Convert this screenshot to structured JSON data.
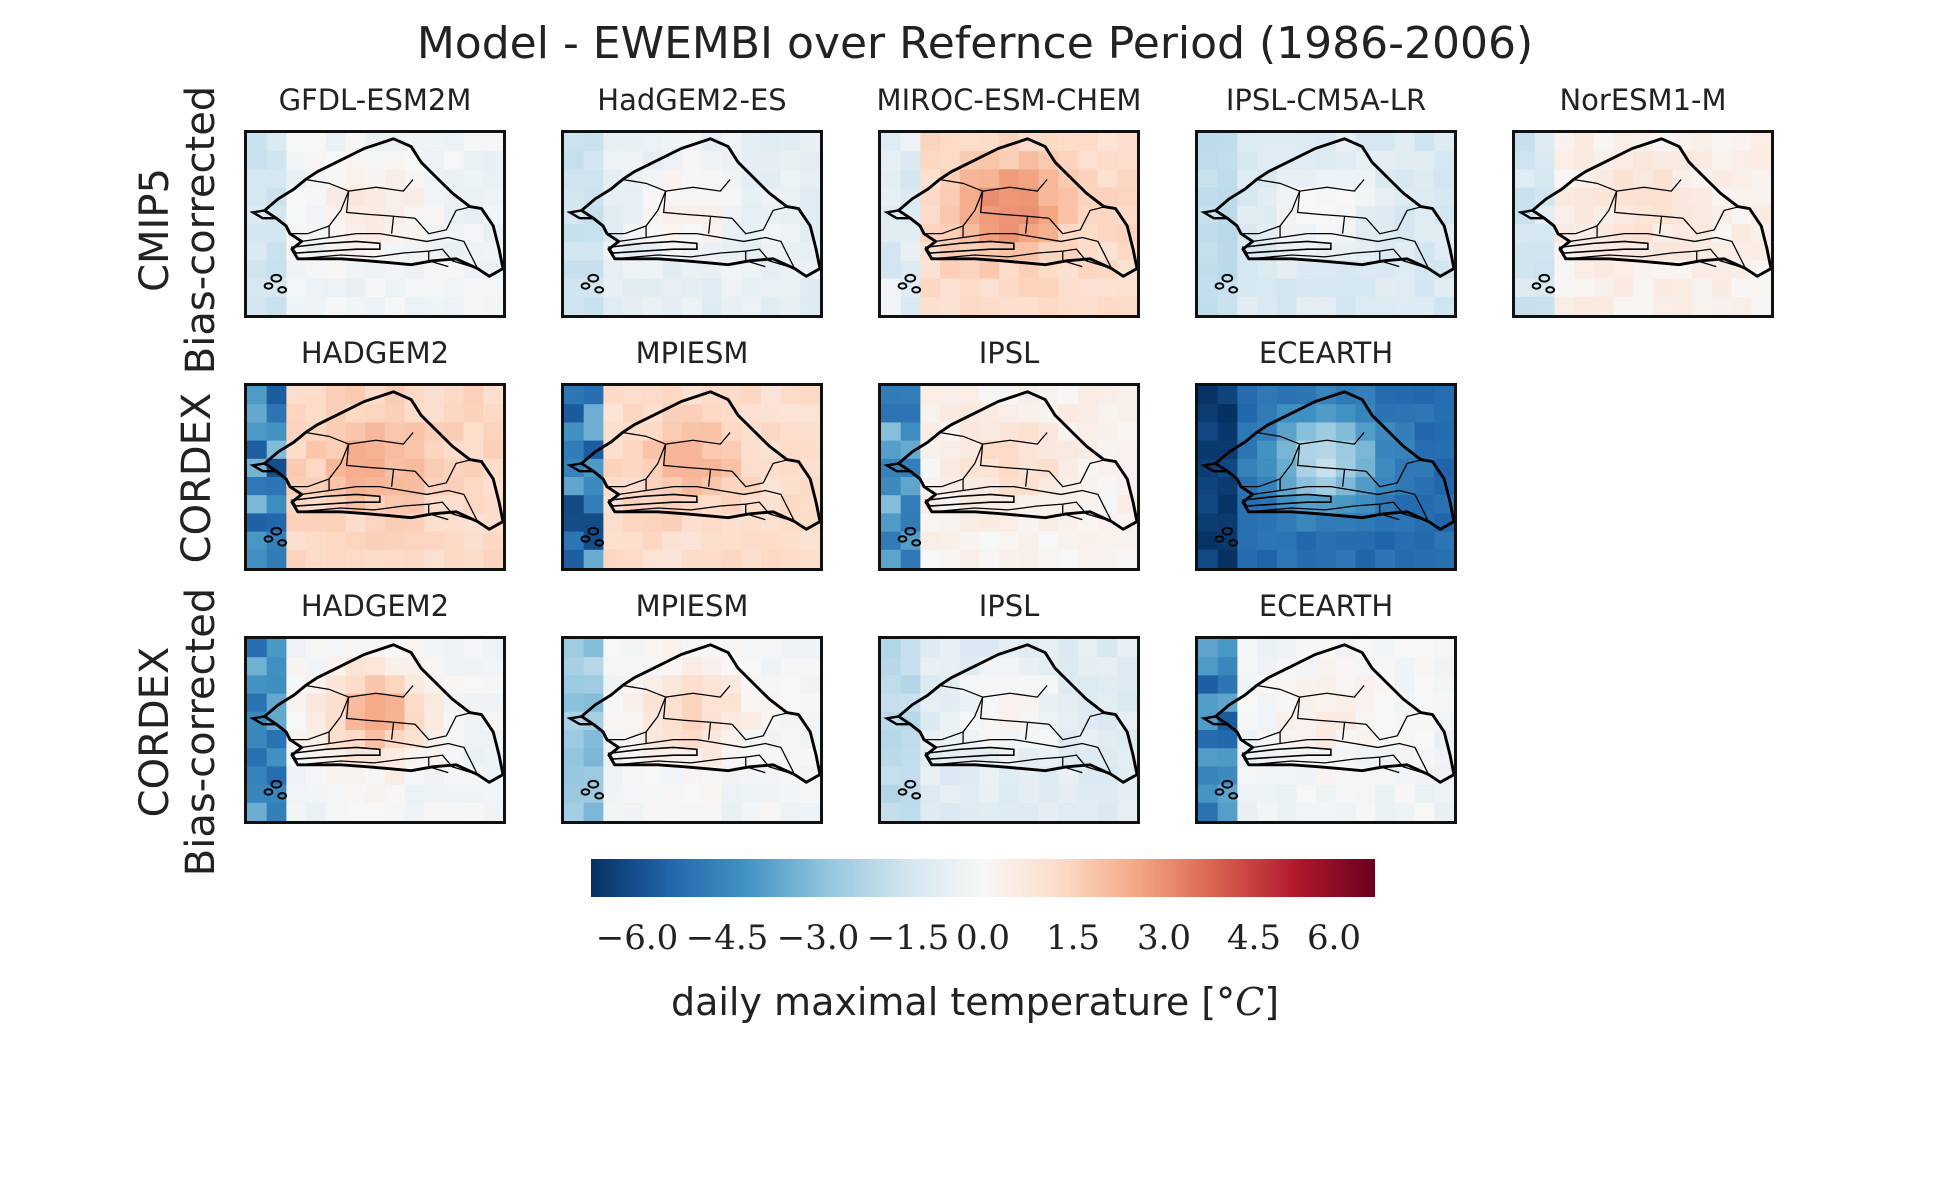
{
  "title": "Model - EWEMBI over Refernce Period (1986-2006)",
  "row_labels": [
    {
      "line1": "CMIP5",
      "line2": "Bias-corrected"
    },
    {
      "line1": "CORDEX",
      "line2": ""
    },
    {
      "line1": "CORDEX",
      "line2": "Bias-corrected"
    }
  ],
  "panel_titles": {
    "row1": [
      "GFDL-ESM2M",
      "HadGEM2-ES",
      "MIROC-ESM-CHEM",
      "IPSL-CM5A-LR",
      "NorESM1-M"
    ],
    "row2": [
      "HADGEM2",
      "MPIESM",
      "IPSL",
      "ECEARTH"
    ],
    "row3": [
      "HADGEM2",
      "MPIESM",
      "IPSL",
      "ECEARTH"
    ]
  },
  "colorbar": {
    "ticks": [
      "−6.0",
      "−4.5",
      "−3.0",
      "−1.5",
      "0.0",
      "1.5",
      "3.0",
      "4.5",
      "6.0"
    ],
    "label_text": "daily maximal temperature [",
    "label_unit": "°C",
    "label_close": "]",
    "range": [
      -6.5,
      6.5
    ],
    "colormap": "RdBu_r",
    "colors": [
      "#053061",
      "#2166ac",
      "#4393c3",
      "#92c5de",
      "#d1e5f0",
      "#f7f7f7",
      "#fddbc7",
      "#f4a582",
      "#d6604d",
      "#b2182b",
      "#67001f"
    ]
  },
  "chart_data": {
    "type": "heatmap",
    "title": "Model - EWEMBI over Refernce Period (1986-2006)",
    "value_label": "daily maximal temperature [°C]",
    "range": [
      -6.5,
      6.5
    ],
    "panels": [
      {
        "row": "CMIP5 Bias-corrected",
        "model": "GFDL-ESM2M",
        "mean_bias_approx": -0.3,
        "max_bias_approx": 0.8,
        "min_bias_approx": -1.5
      },
      {
        "row": "CMIP5 Bias-corrected",
        "model": "HadGEM2-ES",
        "mean_bias_approx": -0.6,
        "max_bias_approx": 0.4,
        "min_bias_approx": -1.6
      },
      {
        "row": "CMIP5 Bias-corrected",
        "model": "MIROC-ESM-CHEM",
        "mean_bias_approx": 1.2,
        "max_bias_approx": 3.2,
        "min_bias_approx": -1.3
      },
      {
        "row": "CMIP5 Bias-corrected",
        "model": "IPSL-CM5A-LR",
        "mean_bias_approx": -1.0,
        "max_bias_approx": 0.0,
        "min_bias_approx": -1.8
      },
      {
        "row": "CMIP5 Bias-corrected",
        "model": "NorESM1-M",
        "mean_bias_approx": 0.3,
        "max_bias_approx": 1.0,
        "min_bias_approx": -1.5
      },
      {
        "row": "CORDEX",
        "model": "HADGEM2",
        "mean_bias_approx": 1.3,
        "max_bias_approx": 2.4,
        "min_bias_approx": -6.0
      },
      {
        "row": "CORDEX",
        "model": "MPIESM",
        "mean_bias_approx": 1.1,
        "max_bias_approx": 2.2,
        "min_bias_approx": -6.0
      },
      {
        "row": "CORDEX",
        "model": "IPSL",
        "mean_bias_approx": 0.2,
        "max_bias_approx": 1.3,
        "min_bias_approx": -5.0
      },
      {
        "row": "CORDEX",
        "model": "ECEARTH",
        "mean_bias_approx": -5.0,
        "max_bias_approx": -1.5,
        "min_bias_approx": -6.5
      },
      {
        "row": "CORDEX Bias-corrected",
        "model": "HADGEM2",
        "mean_bias_approx": -0.2,
        "max_bias_approx": 2.6,
        "min_bias_approx": -5.5
      },
      {
        "row": "CORDEX Bias-corrected",
        "model": "MPIESM",
        "mean_bias_approx": -0.2,
        "max_bias_approx": 1.5,
        "min_bias_approx": -3.0
      },
      {
        "row": "CORDEX Bias-corrected",
        "model": "IPSL",
        "mean_bias_approx": -0.8,
        "max_bias_approx": 0.3,
        "min_bias_approx": -2.0
      },
      {
        "row": "CORDEX Bias-corrected",
        "model": "ECEARTH",
        "mean_bias_approx": -0.2,
        "max_bias_approx": 0.6,
        "min_bias_approx": -6.0
      }
    ]
  }
}
